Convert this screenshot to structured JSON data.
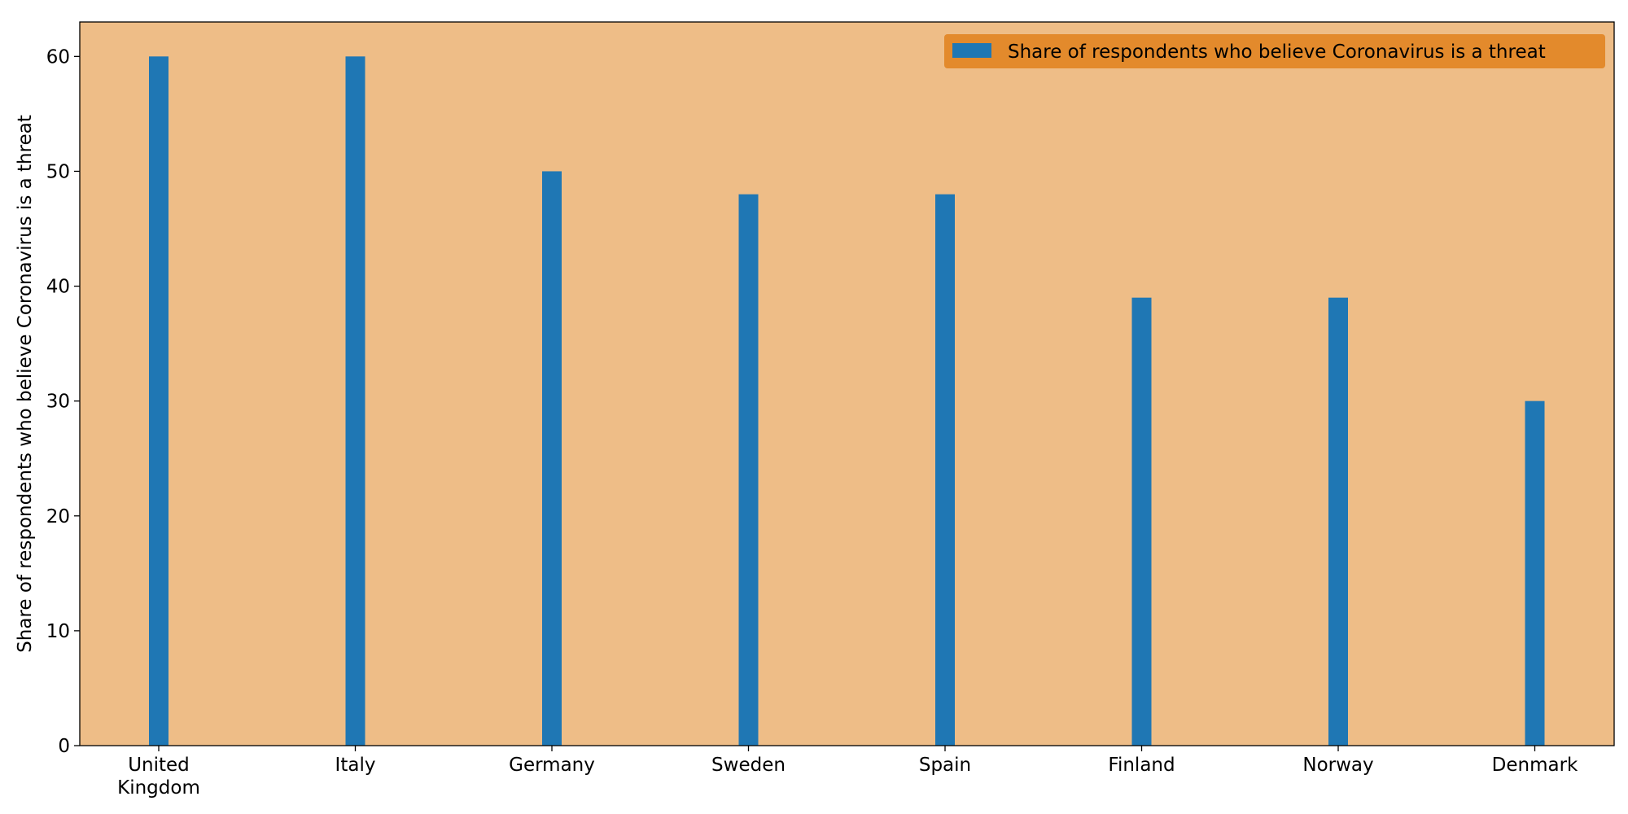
{
  "chart_data": {
    "type": "bar",
    "categories": [
      "United Kingdom",
      "Italy",
      "Germany",
      "Sweden",
      "Spain",
      "Finland",
      "Norway",
      "Denmark"
    ],
    "category_lines": [
      [
        "United",
        "Kingdom"
      ],
      [
        "Italy"
      ],
      [
        "Germany"
      ],
      [
        "Sweden"
      ],
      [
        "Spain"
      ],
      [
        "Finland"
      ],
      [
        "Norway"
      ],
      [
        "Denmark"
      ]
    ],
    "series": [
      {
        "name": "Share of respondents who believe Coronavirus is a threat",
        "values": [
          60,
          60,
          50,
          48,
          48,
          39,
          39,
          30
        ],
        "color": "#1f77b4"
      }
    ],
    "title": "",
    "xlabel": "",
    "ylabel": "Share of respondents who believe Coronavirus is a threat",
    "ylim": [
      0,
      63
    ],
    "yticks": [
      0,
      10,
      20,
      30,
      40,
      50,
      60
    ],
    "grid": false,
    "legend_position": "top-right",
    "colors": {
      "plot_background": "#eebd87",
      "legend_background": "#e38a2c",
      "bar": "#1f77b4",
      "axis": "#000000"
    }
  }
}
